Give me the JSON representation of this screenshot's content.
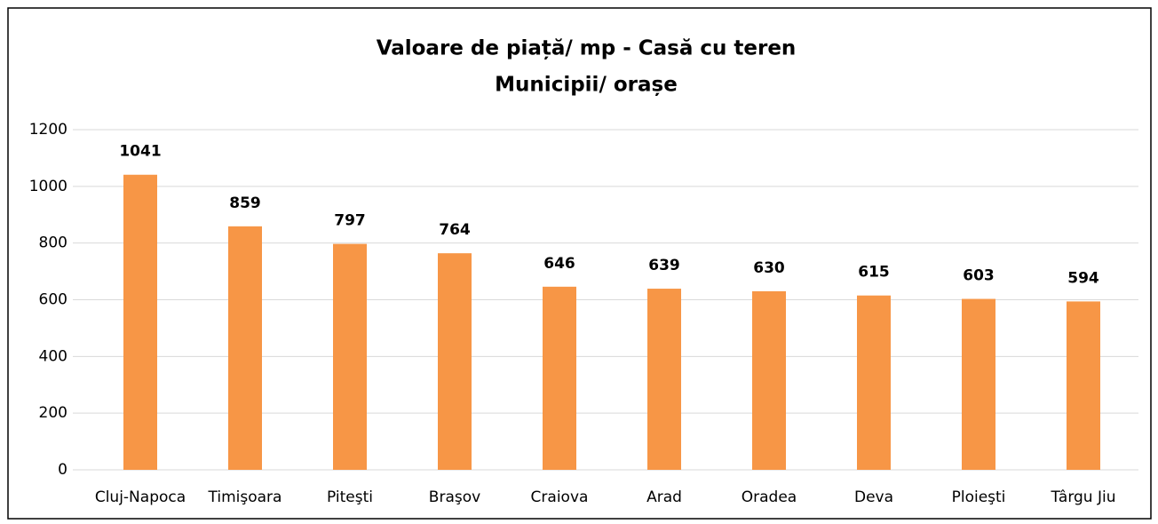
{
  "chart_data": {
    "type": "bar",
    "title": "Valoare de piață/ mp - Casă cu teren",
    "subtitle": "Municipii/ orașe",
    "categories": [
      "Cluj-Napoca",
      "Timişoara",
      "Piteşti",
      "Braşov",
      "Craiova",
      "Arad",
      "Oradea",
      "Deva",
      "Ploieşti",
      "Târgu Jiu"
    ],
    "values": [
      1041,
      859,
      797,
      764,
      646,
      639,
      630,
      615,
      603,
      594
    ],
    "color": "#f79646",
    "ylim": [
      0,
      1200
    ],
    "yticks": [
      0,
      200,
      400,
      600,
      800,
      1000,
      1200
    ],
    "grid": true
  }
}
